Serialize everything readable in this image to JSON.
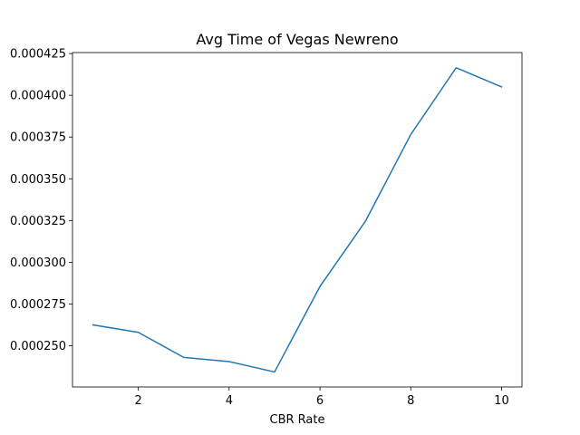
{
  "chart_data": {
    "type": "line",
    "title": "Avg Time of Vegas Newreno",
    "xlabel": "CBR Rate",
    "ylabel": "",
    "x": [
      1,
      2,
      3,
      4,
      5,
      6,
      7,
      8,
      9,
      10
    ],
    "series": [
      {
        "values": [
          0.0002625,
          0.000258,
          0.000243,
          0.0002405,
          0.0002343,
          0.0002855,
          0.0003245,
          0.0003765,
          0.0004165,
          0.000405
        ],
        "color": "#1f77b4"
      }
    ],
    "xlim": [
      0.55,
      10.45
    ],
    "ylim": [
      0.0002253,
      0.0004256
    ],
    "xticks": [
      2,
      4,
      6,
      8,
      10
    ],
    "xtick_labels": [
      "2",
      "4",
      "6",
      "8",
      "10"
    ],
    "yticks": [
      0.00025,
      0.000275,
      0.0003,
      0.000325,
      0.00035,
      0.000375,
      0.0004,
      0.000425
    ],
    "ytick_labels": [
      "0.000250",
      "0.000275",
      "0.000300",
      "0.000325",
      "0.000350",
      "0.000375",
      "0.000400",
      "0.000425"
    ],
    "grid": false,
    "legend": "none"
  }
}
